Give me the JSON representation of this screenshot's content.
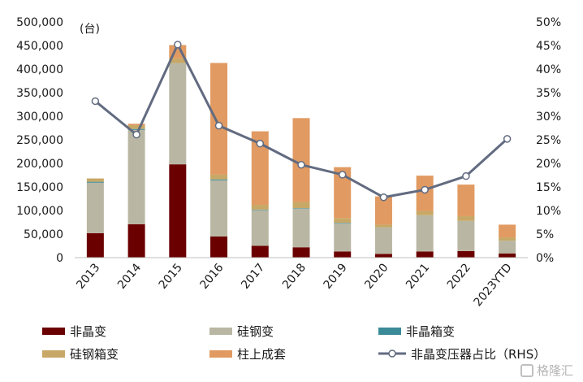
{
  "chart_data": {
    "type": "bar",
    "stacked": true,
    "unit_label": "(台)",
    "categories": [
      "2013",
      "2014",
      "2015",
      "2016",
      "2017",
      "2018",
      "2019",
      "2020",
      "2021",
      "2022",
      "2023YTD"
    ],
    "ylim": [
      0,
      500000
    ],
    "yticks": [
      "0",
      "50,000",
      "100,000",
      "150,000",
      "200,000",
      "250,000",
      "300,000",
      "350,000",
      "400,000",
      "450,000",
      "500,000"
    ],
    "y2lim": [
      0,
      50
    ],
    "y2ticks": [
      "0%",
      "5%",
      "10%",
      "15%",
      "20%",
      "25%",
      "30%",
      "35%",
      "40%",
      "45%",
      "50%"
    ],
    "series": [
      {
        "name": "非晶变",
        "color": "#6b0000",
        "values": [
          52000,
          71000,
          198000,
          45000,
          25000,
          22000,
          13000,
          8000,
          13000,
          14000,
          9000
        ]
      },
      {
        "name": "硅钢变",
        "color": "#b9b7a3",
        "values": [
          107000,
          200000,
          215000,
          119000,
          76000,
          82000,
          60000,
          56000,
          77000,
          64000,
          27000
        ]
      },
      {
        "name": "非晶箱变",
        "color": "#3b8a98",
        "values": [
          2000,
          2000,
          0,
          2000,
          1000,
          1000,
          1000,
          0,
          0,
          0,
          0
        ]
      },
      {
        "name": "硅钢箱变",
        "color": "#c8a866",
        "values": [
          7000,
          8000,
          10000,
          10000,
          10000,
          13000,
          10000,
          6000,
          9000,
          10000,
          7000
        ]
      },
      {
        "name": "柱上成套",
        "color": "#e19a61",
        "values": [
          0,
          3000,
          28000,
          237000,
          156000,
          178000,
          108000,
          60000,
          75000,
          67000,
          27000
        ]
      }
    ],
    "line_series": {
      "name": "非晶变压器占比（RHS）",
      "color": "#626b80",
      "values": [
        33.2,
        26.1,
        45.2,
        28.0,
        24.2,
        19.7,
        17.6,
        12.8,
        14.4,
        17.3,
        25.2
      ]
    }
  },
  "watermark": "格隆汇"
}
